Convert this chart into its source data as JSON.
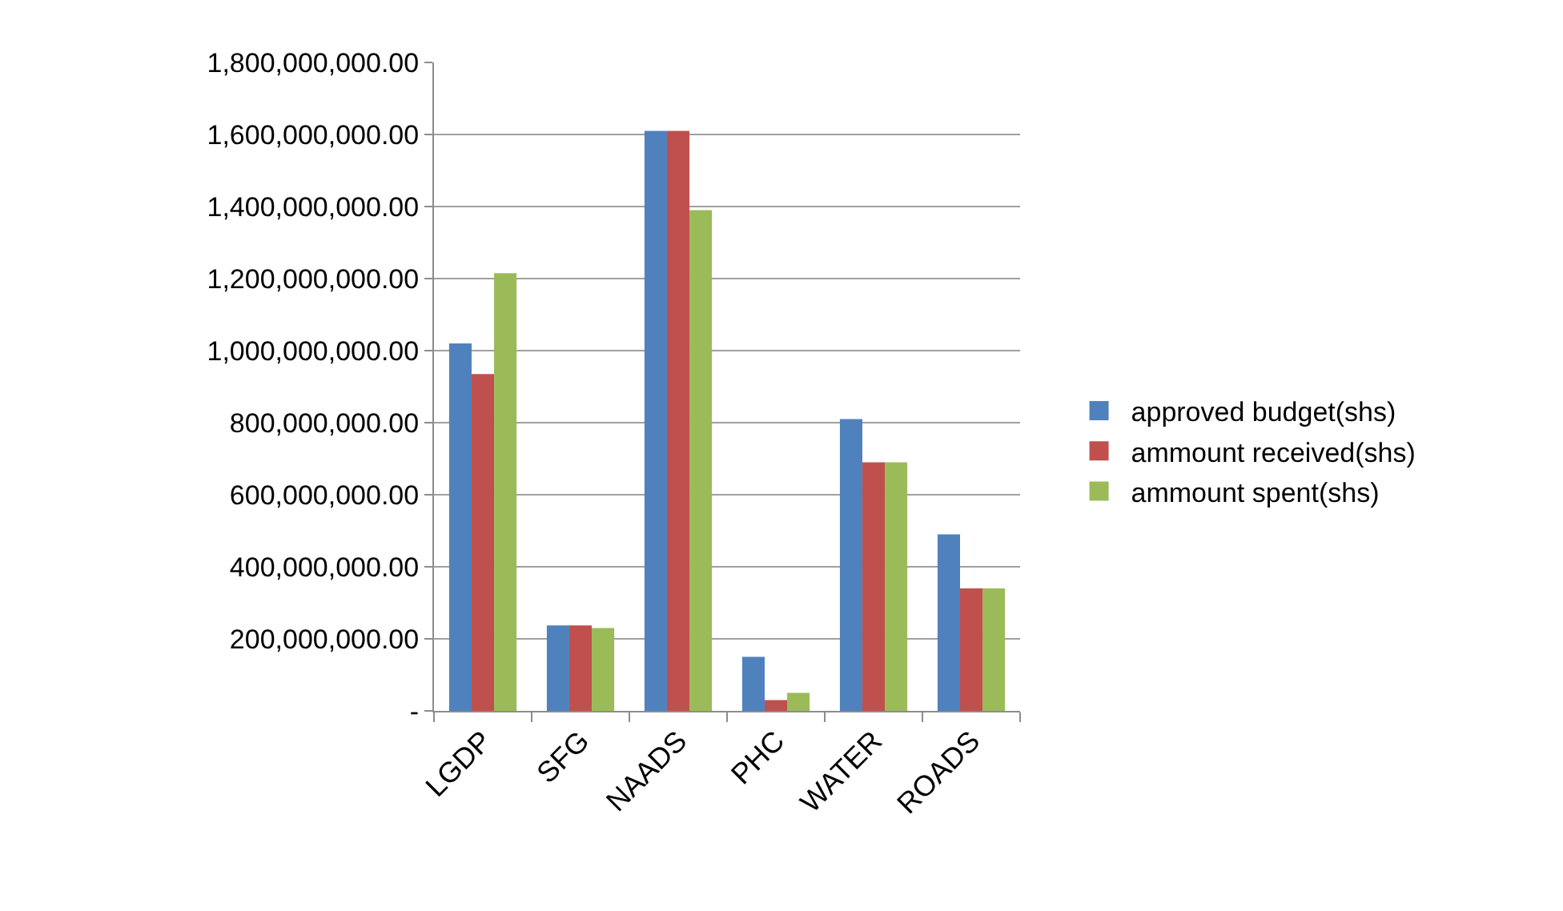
{
  "chart_data": {
    "type": "bar",
    "categories": [
      "LGDP",
      "SFG",
      "NAADS",
      "PHC",
      "WATER",
      "ROADS"
    ],
    "series": [
      {
        "name": "approved budget(shs)",
        "color": "#4f81bd",
        "values": [
          1020000000,
          237000000,
          1610000000,
          150000000,
          810000000,
          490000000
        ]
      },
      {
        "name": "ammount received(shs)",
        "color": "#c0504d",
        "values": [
          935000000,
          237000000,
          1610000000,
          30000000,
          690000000,
          340000000
        ]
      },
      {
        "name": "ammount spent(shs)",
        "color": "#9bbb59",
        "values": [
          1215000000,
          230000000,
          1390000000,
          50000000,
          690000000,
          340000000
        ]
      }
    ],
    "ylim": [
      0,
      1800000000
    ],
    "yticks": [
      {
        "value": 0,
        "label": "-"
      },
      {
        "value": 200000000,
        "label": "200,000,000.00"
      },
      {
        "value": 400000000,
        "label": "400,000,000.00"
      },
      {
        "value": 600000000,
        "label": "600,000,000.00"
      },
      {
        "value": 800000000,
        "label": "800,000,000.00"
      },
      {
        "value": 1000000000,
        "label": "1,000,000,000.00"
      },
      {
        "value": 1200000000,
        "label": "1,200,000,000.00"
      },
      {
        "value": 1400000000,
        "label": "1,400,000,000.00"
      },
      {
        "value": 1600000000,
        "label": "1,600,000,000.00"
      },
      {
        "value": 1800000000,
        "label": "1,800,000,000.00"
      }
    ],
    "grid": "y",
    "legend": "right"
  }
}
